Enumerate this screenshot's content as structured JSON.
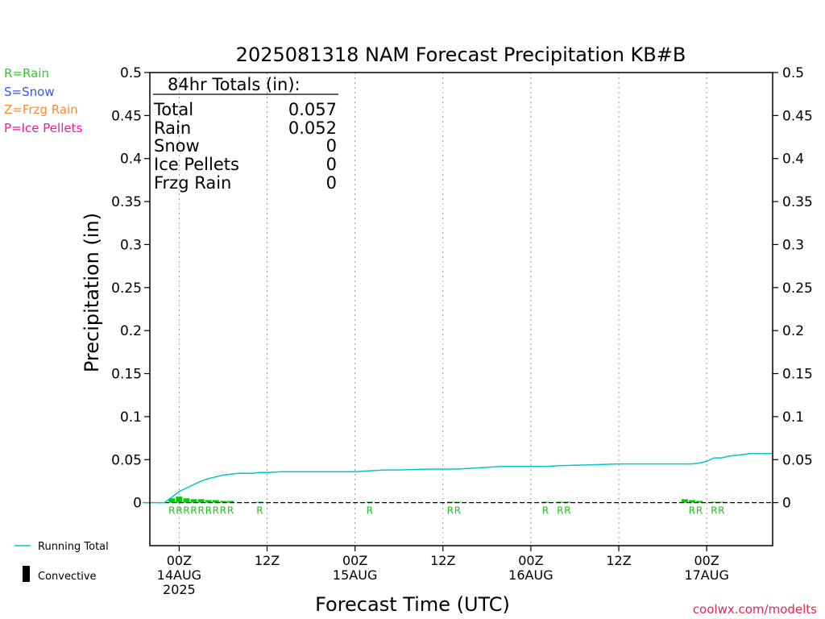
{
  "chart_data": {
    "type": "line",
    "title": "2025081318 NAM Forecast Precipitation KB#B",
    "xlabel": "Forecast Time (UTC)",
    "ylabel": "Precipitation (in)",
    "ylim": [
      -0.05,
      0.5
    ],
    "yticks": [
      "0.5",
      "0.45",
      "0.4",
      "0.35",
      "0.3",
      "0.25",
      "0.2",
      "0.15",
      "0.1",
      "0.05",
      "0"
    ],
    "ytick_values": [
      0.5,
      0.45,
      0.4,
      0.35,
      0.3,
      0.25,
      0.2,
      0.15,
      0.1,
      0.05,
      0
    ],
    "xlim_hours": [
      -4,
      81
    ],
    "xticks": [
      {
        "hour": 0,
        "lines": [
          "00Z",
          "14AUG",
          "2025"
        ]
      },
      {
        "hour": 12,
        "lines": [
          "12Z"
        ]
      },
      {
        "hour": 24,
        "lines": [
          "00Z",
          "15AUG"
        ]
      },
      {
        "hour": 36,
        "lines": [
          "12Z"
        ]
      },
      {
        "hour": 48,
        "lines": [
          "00Z",
          "16AUG"
        ]
      },
      {
        "hour": 60,
        "lines": [
          "12Z"
        ]
      },
      {
        "hour": 72,
        "lines": [
          "00Z",
          "17AUG"
        ]
      }
    ],
    "series": [
      {
        "name": "Running Total",
        "color": "#00c8c8",
        "x_hours": [
          -5,
          -2,
          0,
          1,
          2,
          3,
          4,
          5,
          6,
          7,
          8,
          9,
          10,
          11,
          12,
          14,
          18,
          22,
          24,
          26,
          28,
          30,
          34,
          38,
          40,
          44,
          46,
          50,
          52,
          56,
          60,
          64,
          70,
          71,
          72,
          73,
          74,
          75,
          78,
          81
        ],
        "y": [
          0,
          0,
          0.013,
          0.017,
          0.021,
          0.025,
          0.028,
          0.03,
          0.032,
          0.033,
          0.034,
          0.034,
          0.034,
          0.035,
          0.035,
          0.036,
          0.036,
          0.036,
          0.036,
          0.037,
          0.038,
          0.038,
          0.039,
          0.039,
          0.04,
          0.042,
          0.042,
          0.042,
          0.043,
          0.044,
          0.045,
          0.045,
          0.045,
          0.046,
          0.048,
          0.052,
          0.052,
          0.054,
          0.057,
          0.057
        ]
      },
      {
        "name": "Convective",
        "color": "#000000",
        "type": "bar",
        "x_hours": [],
        "y": []
      },
      {
        "name": "Rain",
        "color": "#00cc00",
        "type": "bar",
        "x_hours": [
          -1,
          0,
          1,
          2,
          3,
          4,
          5,
          6,
          7,
          11,
          26,
          37,
          38,
          50,
          52,
          53,
          69,
          70,
          71,
          73,
          74
        ],
        "y": [
          0.005,
          0.007,
          0.005,
          0.004,
          0.004,
          0.003,
          0.003,
          0.002,
          0.002,
          0.001,
          0.001,
          0.001,
          0.001,
          0.001,
          0.001,
          0.001,
          0.004,
          0.003,
          0.002,
          0.001,
          0.001
        ]
      }
    ],
    "ptype_markers": [
      {
        "hour": -1,
        "label": "R"
      },
      {
        "hour": 0,
        "label": "R"
      },
      {
        "hour": 1,
        "label": "R"
      },
      {
        "hour": 2,
        "label": "R"
      },
      {
        "hour": 3,
        "label": "R"
      },
      {
        "hour": 4,
        "label": "R"
      },
      {
        "hour": 5,
        "label": "R"
      },
      {
        "hour": 6,
        "label": "R"
      },
      {
        "hour": 7,
        "label": "R"
      },
      {
        "hour": 11,
        "label": "R"
      },
      {
        "hour": 26,
        "label": "R"
      },
      {
        "hour": 37,
        "label": "R"
      },
      {
        "hour": 38,
        "label": "R"
      },
      {
        "hour": 50,
        "label": "R"
      },
      {
        "hour": 52,
        "label": "R"
      },
      {
        "hour": 53,
        "label": "R"
      },
      {
        "hour": 70,
        "label": "R"
      },
      {
        "hour": 71,
        "label": "R"
      },
      {
        "hour": 73,
        "label": "R"
      },
      {
        "hour": 74,
        "label": "R"
      }
    ],
    "grid": "vertical-dotted",
    "zero_line": "dashed"
  },
  "totals_box": {
    "heading": "84hr Totals (in):",
    "rows": [
      {
        "label": "Total",
        "value": "0.057"
      },
      {
        "label": "Rain",
        "value": "0.052"
      },
      {
        "label": "Snow",
        "value": "0"
      },
      {
        "label": "Ice Pellets",
        "value": "0"
      },
      {
        "label": "Frzg Rain",
        "value": "0"
      }
    ]
  },
  "ptype_legend": [
    {
      "text": "R=Rain",
      "color": "#33cc33"
    },
    {
      "text": "S=Snow",
      "color": "#3355ff"
    },
    {
      "text": "Z=Frzg Rain",
      "color": "#ff8833"
    },
    {
      "text": "P=Ice Pellets",
      "color": "#ff1493"
    }
  ],
  "bottom_legend": {
    "running_total": "Running Total",
    "convective": "Convective"
  },
  "credit": "coolwx.com/modelts",
  "colors": {
    "running_total": "#00c8c8",
    "rain_bar": "#00cc00",
    "credit": "#e0284a",
    "axis": "#000000"
  }
}
